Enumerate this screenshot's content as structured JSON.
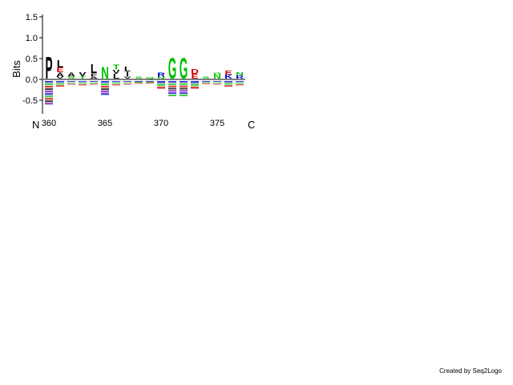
{
  "chart_data": {
    "type": "sequence-logo",
    "ylabel": "Bits",
    "ylim": [
      -0.8,
      1.5
    ],
    "yticks": [
      "1.5",
      "1.0",
      "0.5",
      "0.0",
      "-0.5"
    ],
    "xticks": [
      "360",
      "365",
      "370",
      "375"
    ],
    "n_terminus_label": "N",
    "c_terminus_label": "C",
    "first_position": 360,
    "last_position": 377,
    "colors": {
      "hydrophobic": "#000000",
      "polar": "#00c000",
      "basic": "#0000d0",
      "acidic": "#d00000",
      "other": "#8000c0",
      "axis": "#000000"
    },
    "positions": [
      {
        "pos": 360,
        "stack": [
          {
            "letter": "P",
            "bits": 0.55,
            "color": "#000000"
          }
        ],
        "neg": 0.58
      },
      {
        "pos": 361,
        "stack": [
          {
            "letter": "V",
            "bits": 0.05,
            "color": "#000000"
          },
          {
            "letter": "A",
            "bits": 0.1,
            "color": "#000000"
          },
          {
            "letter": "E",
            "bits": 0.12,
            "color": "#d00000"
          },
          {
            "letter": "L",
            "bits": 0.18,
            "color": "#000000"
          }
        ],
        "neg": 0.15
      },
      {
        "pos": 362,
        "stack": [
          {
            "letter": "S",
            "bits": 0.05,
            "color": "#00c000"
          },
          {
            "letter": "A",
            "bits": 0.1,
            "color": "#000000"
          }
        ],
        "neg": 0.1
      },
      {
        "pos": 363,
        "stack": [
          {
            "letter": "T",
            "bits": 0.06,
            "color": "#00c000"
          },
          {
            "letter": "V",
            "bits": 0.1,
            "color": "#000000"
          }
        ],
        "neg": 0.12
      },
      {
        "pos": 364,
        "stack": [
          {
            "letter": "A",
            "bits": 0.05,
            "color": "#000000"
          },
          {
            "letter": "F",
            "bits": 0.08,
            "color": "#000000"
          },
          {
            "letter": "L",
            "bits": 0.22,
            "color": "#000000"
          }
        ],
        "neg": 0.1
      },
      {
        "pos": 365,
        "stack": [
          {
            "letter": "N",
            "bits": 0.3,
            "color": "#00c000"
          }
        ],
        "neg": 0.35
      },
      {
        "pos": 366,
        "stack": [
          {
            "letter": "L",
            "bits": 0.12,
            "color": "#000000"
          },
          {
            "letter": "V",
            "bits": 0.1,
            "color": "#000000"
          },
          {
            "letter": "T",
            "bits": 0.12,
            "color": "#00c000"
          }
        ],
        "neg": 0.12
      },
      {
        "pos": 367,
        "stack": [
          {
            "letter": "V",
            "bits": 0.05,
            "color": "#000000"
          },
          {
            "letter": "I",
            "bits": 0.12,
            "color": "#000000"
          },
          {
            "letter": "L",
            "bits": 0.12,
            "color": "#000000"
          }
        ],
        "neg": 0.1
      },
      {
        "pos": 368,
        "stack": [
          {
            "letter": "S",
            "bits": 0.05,
            "color": "#00c000"
          }
        ],
        "neg": 0.06
      },
      {
        "pos": 369,
        "stack": [
          {
            "letter": "Q",
            "bits": 0.04,
            "color": "#00c000"
          }
        ],
        "neg": 0.06
      },
      {
        "pos": 370,
        "stack": [
          {
            "letter": "N",
            "bits": 0.05,
            "color": "#00c000"
          },
          {
            "letter": "R",
            "bits": 0.1,
            "color": "#0000d0"
          }
        ],
        "neg": 0.2
      },
      {
        "pos": 371,
        "stack": [
          {
            "letter": "G",
            "bits": 0.52,
            "color": "#00c000"
          }
        ],
        "neg": 0.38
      },
      {
        "pos": 372,
        "stack": [
          {
            "letter": "G",
            "bits": 0.52,
            "color": "#00c000"
          }
        ],
        "neg": 0.38
      },
      {
        "pos": 373,
        "stack": [
          {
            "letter": "E",
            "bits": 0.12,
            "color": "#d00000"
          },
          {
            "letter": "D",
            "bits": 0.12,
            "color": "#d00000"
          }
        ],
        "neg": 0.2
      },
      {
        "pos": 374,
        "stack": [
          {
            "letter": "S",
            "bits": 0.05,
            "color": "#00c000"
          }
        ],
        "neg": 0.08
      },
      {
        "pos": 375,
        "stack": [
          {
            "letter": "N",
            "bits": 0.1,
            "color": "#00c000"
          },
          {
            "letter": "G",
            "bits": 0.05,
            "color": "#00c000"
          }
        ],
        "neg": 0.1
      },
      {
        "pos": 376,
        "stack": [
          {
            "letter": "K",
            "bits": 0.1,
            "color": "#0000d0"
          },
          {
            "letter": "E",
            "bits": 0.1,
            "color": "#d00000"
          }
        ],
        "neg": 0.15
      },
      {
        "pos": 377,
        "stack": [
          {
            "letter": "R",
            "bits": 0.08,
            "color": "#0000d0"
          },
          {
            "letter": "N",
            "bits": 0.08,
            "color": "#00c000"
          }
        ],
        "neg": 0.12
      }
    ]
  },
  "credit": "Created by Seq2Logo"
}
